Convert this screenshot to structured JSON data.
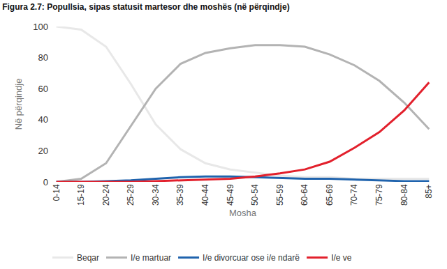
{
  "chart_data": {
    "type": "line",
    "title": "Figura 2.7: Popullsia, sipas statusit martesor dhe moshës (në përqindje)",
    "x_label": "Mosha",
    "y_label": "Në përqindje",
    "categories": [
      "0-14",
      "15-19",
      "20-24",
      "25-29",
      "30-34",
      "35-39",
      "40-44",
      "45-49",
      "50-54",
      "55-59",
      "60-64",
      "65-69",
      "70-74",
      "75-79",
      "80-84",
      "85+"
    ],
    "series": [
      {
        "name": "Beqar",
        "color": "#e8e8e8",
        "values": [
          100,
          98,
          87,
          63,
          37,
          21,
          12,
          8,
          6,
          4,
          3,
          3,
          2,
          2,
          2,
          2
        ]
      },
      {
        "name": "I/e martuar",
        "color": "#b3b3b3",
        "values": [
          0,
          2,
          12,
          36,
          60,
          76,
          83,
          86,
          88,
          88,
          87,
          82,
          75,
          65,
          51,
          34
        ]
      },
      {
        "name": "I/e divorcuar ose i/e ndarë",
        "color": "#1f63ad",
        "values": [
          0,
          0,
          0.5,
          1,
          2,
          3,
          3.5,
          3.5,
          3,
          2.5,
          2,
          2,
          1.5,
          1,
          0.5,
          0.5
        ]
      },
      {
        "name": "I/e ve",
        "color": "#e2202c",
        "values": [
          0,
          0,
          0,
          0,
          0.5,
          1,
          1.5,
          2,
          3.5,
          5.5,
          8,
          13,
          22,
          32,
          46,
          64
        ]
      }
    ],
    "ylim": [
      0,
      100
    ],
    "yticks": [
      0,
      20,
      40,
      60,
      80,
      100
    ],
    "grid": false,
    "legend": "bottom"
  }
}
